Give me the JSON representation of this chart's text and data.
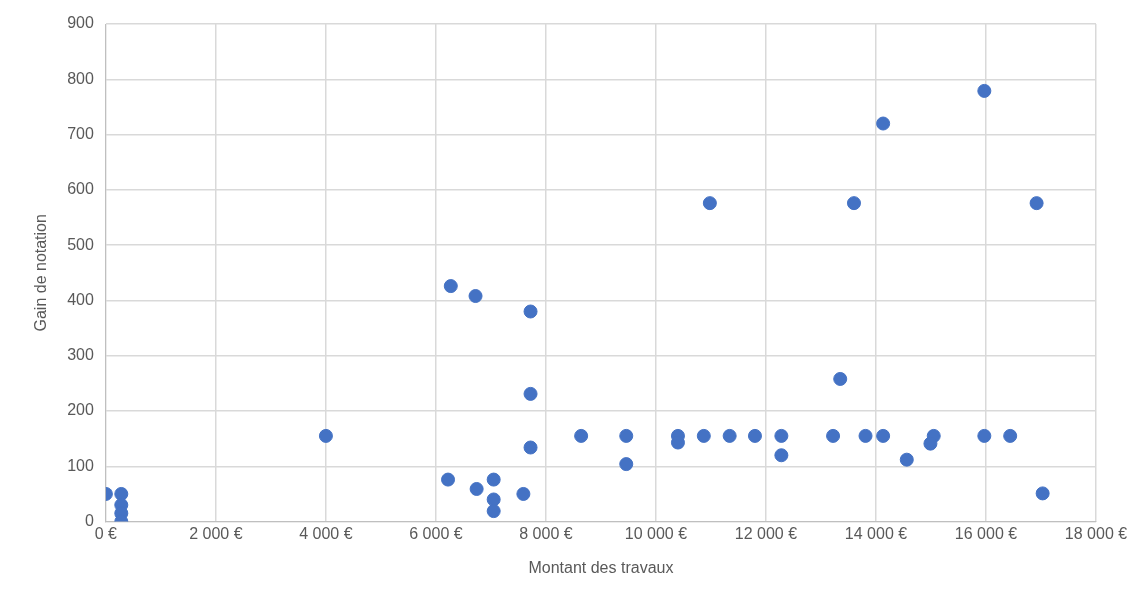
{
  "chart_data": {
    "type": "scatter",
    "xlabel": "Montant des travaux",
    "ylabel": "Gain de notation",
    "x": [
      0,
      280,
      280,
      280,
      280,
      4000,
      6270,
      6720,
      7720,
      7720,
      7720,
      8640,
      6220,
      6740,
      7050,
      7050,
      7050,
      7590,
      9460,
      9460,
      10400,
      10400,
      10870,
      11340,
      11800,
      12280,
      12280,
      10980,
      13600,
      16920,
      14130,
      15970,
      13220,
      13350,
      13810,
      14130,
      14560,
      15050,
      14990,
      15970,
      16440,
      17030
    ],
    "series": [
      {
        "color": "#4472c4",
        "values": [
          50,
          50,
          30,
          15,
          0,
          155,
          426,
          408,
          380,
          231,
          134,
          155,
          76,
          59,
          76,
          40,
          19,
          50,
          155,
          104,
          155,
          143,
          155,
          155,
          155,
          155,
          120,
          576,
          576,
          576,
          720,
          779,
          155,
          258,
          155,
          155,
          112,
          155,
          141,
          155,
          155,
          51
        ]
      }
    ],
    "xlim": [
      0,
      18000
    ],
    "xticks": [
      {
        "value": 0,
        "label": "0 €"
      },
      {
        "value": 2000,
        "label": "2 000 €"
      },
      {
        "value": 4000,
        "label": "4 000 €"
      },
      {
        "value": 6000,
        "label": "6 000 €"
      },
      {
        "value": 8000,
        "label": "8 000 €"
      },
      {
        "value": 10000,
        "label": "10 000 €"
      },
      {
        "value": 12000,
        "label": "12 000 €"
      },
      {
        "value": 14000,
        "label": "14 000 €"
      },
      {
        "value": 16000,
        "label": "16 000 €"
      },
      {
        "value": 18000,
        "label": "18 000 €"
      }
    ],
    "ylim": [
      0,
      900
    ],
    "yticks": [
      0,
      100,
      200,
      300,
      400,
      500,
      600,
      700,
      800,
      900
    ],
    "grid": true,
    "legend": false,
    "marker": "circle"
  }
}
